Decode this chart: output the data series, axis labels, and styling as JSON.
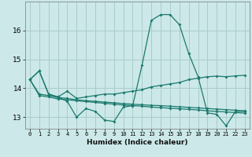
{
  "xlabel": "Humidex (Indice chaleur)",
  "background_color": "#cce8e8",
  "grid_color": "#aacccc",
  "line_color": "#1a7a6e",
  "xlim": [
    -0.5,
    23.5
  ],
  "ylim": [
    12.6,
    17.0
  ],
  "yticks": [
    13,
    14,
    15,
    16
  ],
  "xticks": [
    0,
    1,
    2,
    3,
    4,
    5,
    6,
    7,
    8,
    9,
    10,
    11,
    12,
    13,
    14,
    15,
    16,
    17,
    18,
    19,
    20,
    21,
    22,
    23
  ],
  "lines": [
    {
      "x": [
        0,
        1,
        2,
        3,
        4,
        5,
        6,
        7,
        8,
        9,
        10,
        11,
        12,
        13,
        14,
        15,
        16,
        17,
        18,
        19,
        20,
        21,
        22,
        23
      ],
      "y": [
        14.3,
        14.6,
        13.8,
        13.7,
        13.55,
        13.0,
        13.3,
        13.2,
        12.9,
        12.85,
        13.35,
        13.4,
        14.8,
        16.35,
        16.55,
        16.55,
        16.2,
        15.2,
        14.4,
        13.15,
        13.1,
        12.7,
        13.2,
        13.2
      ]
    },
    {
      "x": [
        0,
        1,
        2,
        3,
        4,
        5,
        6,
        7,
        8,
        9,
        10,
        11,
        12,
        13,
        14,
        15,
        16,
        17,
        18,
        19,
        20,
        21,
        22,
        23
      ],
      "y": [
        14.3,
        14.6,
        13.8,
        13.7,
        13.9,
        13.65,
        13.7,
        13.75,
        13.8,
        13.8,
        13.85,
        13.9,
        13.95,
        14.05,
        14.1,
        14.15,
        14.2,
        14.3,
        14.35,
        14.4,
        14.42,
        14.4,
        14.43,
        14.45
      ]
    },
    {
      "x": [
        0,
        1,
        2,
        3,
        4,
        5,
        6,
        7,
        8,
        9,
        10,
        11,
        12,
        13,
        14,
        15,
        16,
        17,
        18,
        19,
        20,
        21,
        22,
        23
      ],
      "y": [
        14.3,
        13.8,
        13.75,
        13.68,
        13.65,
        13.6,
        13.57,
        13.55,
        13.52,
        13.5,
        13.47,
        13.45,
        13.43,
        13.41,
        13.4,
        13.38,
        13.36,
        13.34,
        13.32,
        13.3,
        13.28,
        13.26,
        13.24,
        13.22
      ]
    },
    {
      "x": [
        0,
        1,
        2,
        3,
        4,
        5,
        6,
        7,
        8,
        9,
        10,
        11,
        12,
        13,
        14,
        15,
        16,
        17,
        18,
        19,
        20,
        21,
        22,
        23
      ],
      "y": [
        14.3,
        13.75,
        13.7,
        13.63,
        13.6,
        13.57,
        13.54,
        13.51,
        13.48,
        13.45,
        13.42,
        13.4,
        13.38,
        13.35,
        13.33,
        13.31,
        13.29,
        13.27,
        13.25,
        13.22,
        13.2,
        13.18,
        13.16,
        13.14
      ]
    }
  ]
}
